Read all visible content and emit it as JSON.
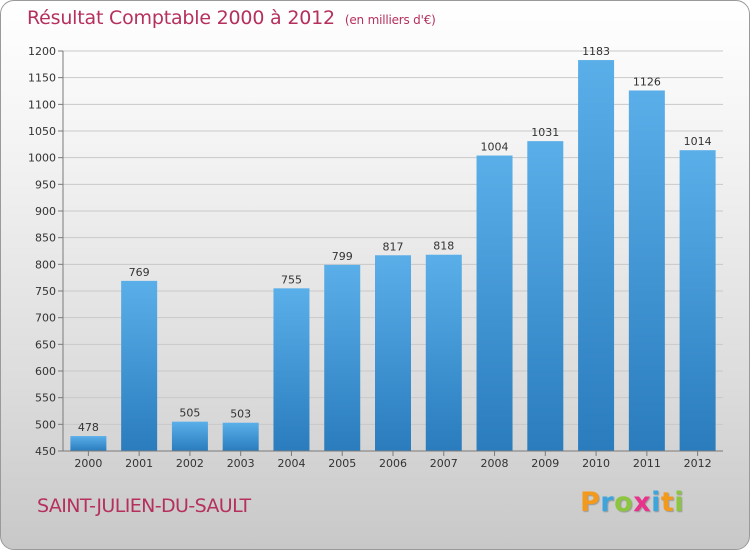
{
  "header": {
    "title": "Résultat Comptable 2000 à 2012",
    "unit": "(en milliers d'€)"
  },
  "footer": {
    "town": "SAINT-JULIEN-DU-SAULT",
    "logo_letters": [
      "P",
      "r",
      "o",
      "x",
      "i",
      "t",
      "i"
    ]
  },
  "colors": {
    "title": "#b5305f",
    "bar_top": "#5aafe9",
    "bar_bottom": "#2a7cbd",
    "logo": [
      "#f39a1d",
      "#3da5dc",
      "#8cc63f",
      "#e8328b",
      "#3da5dc",
      "#f39a1d",
      "#8cc63f"
    ]
  },
  "chart_data": {
    "type": "bar",
    "categories": [
      "2000",
      "2001",
      "2002",
      "2003",
      "2004",
      "2005",
      "2006",
      "2007",
      "2008",
      "2009",
      "2010",
      "2011",
      "2012"
    ],
    "values": [
      478,
      769,
      505,
      503,
      755,
      799,
      817,
      818,
      1004,
      1031,
      1183,
      1126,
      1014
    ],
    "ylim": [
      450,
      1200
    ],
    "yticks": [
      450,
      500,
      550,
      600,
      650,
      700,
      750,
      800,
      850,
      900,
      950,
      1000,
      1050,
      1100,
      1150,
      1200
    ],
    "grid": true
  }
}
